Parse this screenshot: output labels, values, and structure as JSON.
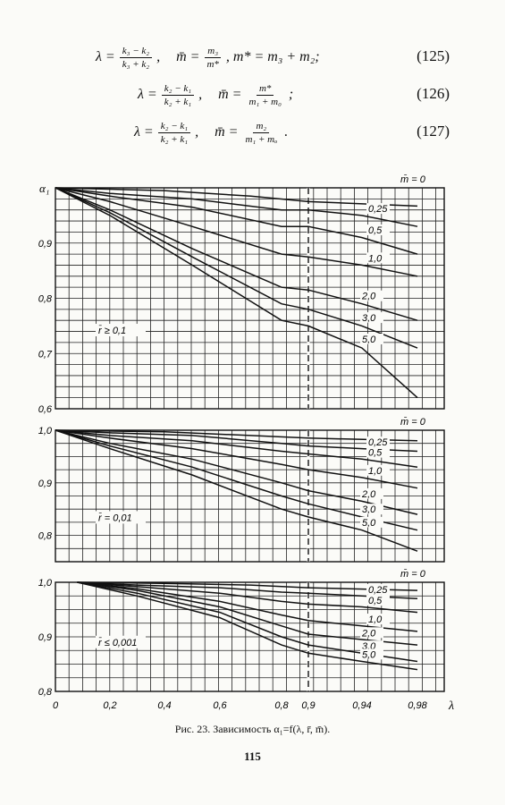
{
  "formulas": [
    {
      "lhs": "λ =",
      "frac1_num": "k₃ − k₂",
      "frac1_den": "k₃ + k₂",
      "sep1": ",",
      "mbar": "m̄ =",
      "frac2_num": "m₃",
      "frac2_den": "m*",
      "tail": ",  m* = m₃ + m₂;",
      "number": "(125)"
    },
    {
      "lhs": "λ =",
      "frac1_num": "k₂ − k₁",
      "frac1_den": "k₂ + k₁",
      "sep1": ",",
      "mbar": "m̄ =",
      "frac2_num": "m*",
      "frac2_den": "m₁ + m₀",
      "tail": ";",
      "number": "(126)"
    },
    {
      "lhs": "λ =",
      "frac1_num": "k₂ − k₁",
      "frac1_den": "k₂ + k₁",
      "sep1": ",",
      "mbar": "m̄ =",
      "frac2_num": "m₂",
      "frac2_den": "m₁ + mₒ",
      "tail": ".",
      "number": "(127)"
    }
  ],
  "caption": "Рис. 23. Зависимость α₁=f(λ, r̄, m̄).",
  "page_number": "115",
  "chart_data": {
    "type": "line",
    "x_axis": {
      "label": "λ",
      "tick_labels": [
        "0",
        "0,2",
        "0,4",
        "0,6",
        "0,8",
        "0,9",
        "0,94",
        "0,98"
      ],
      "note": "non-linear scale; break at 0,9 (dashed line)"
    },
    "ylabel": "α₁",
    "legend_title": "m̄ = 0",
    "panels": [
      {
        "condition": "r̄ ≥ 0,1",
        "ylim": [
          0.6,
          1.0
        ],
        "yticks": [
          "0,6",
          "0,7",
          "0,8",
          "0,9"
        ],
        "series": [
          {
            "name": "m̄ = 0",
            "x": [
              0,
              0.4,
              0.7,
              0.9,
              0.98
            ],
            "values": [
              1.0,
              0.995,
              0.985,
              0.975,
              0.967
            ]
          },
          {
            "name": "0,25",
            "x": [
              0,
              0.2,
              0.5,
              0.8,
              0.9,
              0.94,
              0.98
            ],
            "values": [
              1.0,
              0.99,
              0.98,
              0.96,
              0.96,
              0.95,
              0.93
            ]
          },
          {
            "name": "0,5",
            "x": [
              0,
              0.2,
              0.5,
              0.8,
              0.9,
              0.94,
              0.98
            ],
            "values": [
              1.0,
              0.985,
              0.965,
              0.93,
              0.93,
              0.91,
              0.88
            ]
          },
          {
            "name": "1,0",
            "x": [
              0,
              0.2,
              0.5,
              0.8,
              0.9,
              0.94,
              0.98
            ],
            "values": [
              1.0,
              0.975,
              0.93,
              0.88,
              0.875,
              0.86,
              0.84
            ]
          },
          {
            "name": "2,0",
            "x": [
              0,
              0.2,
              0.5,
              0.8,
              0.9,
              0.94,
              0.98
            ],
            "values": [
              1.0,
              0.96,
              0.89,
              0.82,
              0.815,
              0.79,
              0.76
            ]
          },
          {
            "name": "3,0",
            "x": [
              0,
              0.2,
              0.5,
              0.8,
              0.9,
              0.94,
              0.98
            ],
            "values": [
              1.0,
              0.955,
              0.875,
              0.79,
              0.78,
              0.75,
              0.71
            ]
          },
          {
            "name": "5,0",
            "x": [
              0,
              0.2,
              0.5,
              0.8,
              0.9,
              0.94,
              0.98
            ],
            "values": [
              1.0,
              0.95,
              0.86,
              0.76,
              0.75,
              0.71,
              0.62
            ]
          }
        ]
      },
      {
        "condition": "r̄ = 0,01",
        "ylim": [
          0.75,
          1.0
        ],
        "yticks": [
          "0,8",
          "0,9",
          "1,0"
        ],
        "series": [
          {
            "name": "m̄ = 0",
            "x": [
              0,
              0.4,
              0.7,
              0.9,
              0.98
            ],
            "values": [
              1.0,
              0.997,
              0.99,
              0.985,
              0.98
            ]
          },
          {
            "name": "0,25",
            "x": [
              0,
              0.2,
              0.5,
              0.8,
              0.9,
              0.94,
              0.98
            ],
            "values": [
              1.0,
              0.995,
              0.99,
              0.975,
              0.97,
              0.965,
              0.96
            ]
          },
          {
            "name": "0,5",
            "x": [
              0,
              0.2,
              0.5,
              0.8,
              0.9,
              0.94,
              0.98
            ],
            "values": [
              1.0,
              0.99,
              0.98,
              0.96,
              0.955,
              0.945,
              0.93
            ]
          },
          {
            "name": "1,0",
            "x": [
              0,
              0.2,
              0.5,
              0.8,
              0.9,
              0.94,
              0.98
            ],
            "values": [
              1.0,
              0.985,
              0.965,
              0.935,
              0.925,
              0.91,
              0.89
            ]
          },
          {
            "name": "2,0",
            "x": [
              0,
              0.2,
              0.5,
              0.8,
              0.9,
              0.94,
              0.98
            ],
            "values": [
              1.0,
              0.975,
              0.945,
              0.9,
              0.885,
              0.865,
              0.84
            ]
          },
          {
            "name": "3,0",
            "x": [
              0,
              0.2,
              0.5,
              0.8,
              0.9,
              0.94,
              0.98
            ],
            "values": [
              1.0,
              0.97,
              0.93,
              0.875,
              0.86,
              0.835,
              0.81
            ]
          },
          {
            "name": "5,0",
            "x": [
              0,
              0.2,
              0.5,
              0.8,
              0.9,
              0.94,
              0.98
            ],
            "values": [
              1.0,
              0.965,
              0.915,
              0.85,
              0.835,
              0.81,
              0.77
            ]
          }
        ]
      },
      {
        "condition": "r̄ ≤ 0,001",
        "ylim": [
          0.8,
          1.0
        ],
        "yticks": [
          "0,8",
          "0,9",
          "1,0"
        ],
        "series": [
          {
            "name": "m̄ = 0",
            "x": [
              0.08,
              0.4,
              0.7,
              0.9,
              0.98
            ],
            "values": [
              1.0,
              0.998,
              0.995,
              0.99,
              0.985
            ]
          },
          {
            "name": "0,25",
            "x": [
              0.08,
              0.3,
              0.6,
              0.8,
              0.9,
              0.94,
              0.98
            ],
            "values": [
              1.0,
              0.995,
              0.99,
              0.982,
              0.98,
              0.975,
              0.97
            ]
          },
          {
            "name": "0,5",
            "x": [
              0.08,
              0.3,
              0.6,
              0.8,
              0.9,
              0.94,
              0.98
            ],
            "values": [
              1.0,
              0.992,
              0.98,
              0.965,
              0.96,
              0.955,
              0.945
            ]
          },
          {
            "name": "1,0",
            "x": [
              0.08,
              0.3,
              0.6,
              0.8,
              0.9,
              0.94,
              0.98
            ],
            "values": [
              1.0,
              0.988,
              0.965,
              0.94,
              0.93,
              0.92,
              0.91
            ]
          },
          {
            "name": "2,0",
            "x": [
              0.08,
              0.3,
              0.6,
              0.8,
              0.9,
              0.94,
              0.98
            ],
            "values": [
              1.0,
              0.985,
              0.955,
              0.92,
              0.905,
              0.895,
              0.885
            ]
          },
          {
            "name": "3,0",
            "x": [
              0.08,
              0.3,
              0.6,
              0.8,
              0.9,
              0.94,
              0.98
            ],
            "values": [
              1.0,
              0.98,
              0.945,
              0.9,
              0.885,
              0.87,
              0.855
            ]
          },
          {
            "name": "5,0",
            "x": [
              0.08,
              0.3,
              0.6,
              0.8,
              0.9,
              0.94,
              0.98
            ],
            "values": [
              1.0,
              0.975,
              0.935,
              0.885,
              0.87,
              0.855,
              0.84
            ]
          }
        ]
      }
    ]
  }
}
